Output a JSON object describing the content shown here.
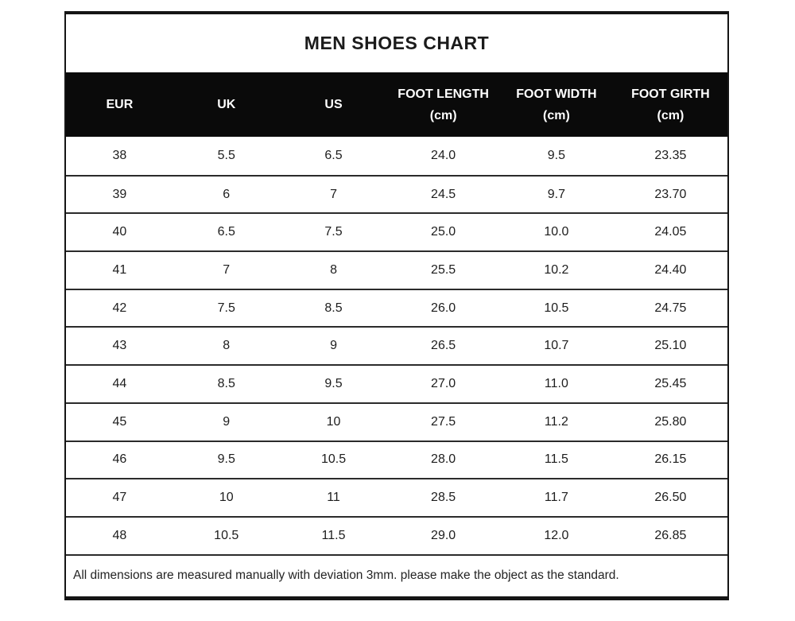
{
  "table": {
    "title": "MEN SHOES CHART",
    "columns": [
      {
        "key": "eur",
        "label": "EUR",
        "sub": ""
      },
      {
        "key": "uk",
        "label": "UK",
        "sub": ""
      },
      {
        "key": "us",
        "label": "US",
        "sub": ""
      },
      {
        "key": "foot-length",
        "label": "FOOT LENGTH",
        "sub": "(cm)"
      },
      {
        "key": "foot-width",
        "label": "FOOT WIDTH",
        "sub": "(cm)"
      },
      {
        "key": "foot-girth",
        "label": "FOOT GIRTH",
        "sub": "(cm)"
      }
    ],
    "rows": [
      [
        "38",
        "5.5",
        "6.5",
        "24.0",
        "9.5",
        "23.35"
      ],
      [
        "39",
        "6",
        "7",
        "24.5",
        "9.7",
        "23.70"
      ],
      [
        "40",
        "6.5",
        "7.5",
        "25.0",
        "10.0",
        "24.05"
      ],
      [
        "41",
        "7",
        "8",
        "25.5",
        "10.2",
        "24.40"
      ],
      [
        "42",
        "7.5",
        "8.5",
        "26.0",
        "10.5",
        "24.75"
      ],
      [
        "43",
        "8",
        "9",
        "26.5",
        "10.7",
        "25.10"
      ],
      [
        "44",
        "8.5",
        "9.5",
        "27.0",
        "11.0",
        "25.45"
      ],
      [
        "45",
        "9",
        "10",
        "27.5",
        "11.2",
        "25.80"
      ],
      [
        "46",
        "9.5",
        "10.5",
        "28.0",
        "11.5",
        "26.15"
      ],
      [
        "47",
        "10",
        "11",
        "28.5",
        "11.7",
        "26.50"
      ],
      [
        "48",
        "10.5",
        "11.5",
        "29.0",
        "12.0",
        "26.85"
      ]
    ],
    "footnote": "All dimensions are measured manually with deviation 3mm. please make the object as the standard.",
    "colors": {
      "header_bg": "#0a0a0a",
      "header_text": "#ffffff",
      "body_text": "#1d1d1d",
      "border": "#2b2b2b"
    }
  },
  "chart_data": {
    "type": "table",
    "title": "MEN SHOES CHART",
    "columns": [
      "EUR",
      "UK",
      "US",
      "FOOT LENGTH (cm)",
      "FOOT WIDTH (cm)",
      "FOOT GIRTH (cm)"
    ],
    "rows": [
      [
        38,
        5.5,
        6.5,
        24.0,
        9.5,
        23.35
      ],
      [
        39,
        6,
        7,
        24.5,
        9.7,
        23.7
      ],
      [
        40,
        6.5,
        7.5,
        25.0,
        10.0,
        24.05
      ],
      [
        41,
        7,
        8,
        25.5,
        10.2,
        24.4
      ],
      [
        42,
        7.5,
        8.5,
        26.0,
        10.5,
        24.75
      ],
      [
        43,
        8,
        9,
        26.5,
        10.7,
        25.1
      ],
      [
        44,
        8.5,
        9.5,
        27.0,
        11.0,
        25.45
      ],
      [
        45,
        9,
        10,
        27.5,
        11.2,
        25.8
      ],
      [
        46,
        9.5,
        10.5,
        28.0,
        11.5,
        26.15
      ],
      [
        47,
        10,
        11,
        28.5,
        11.7,
        26.5
      ],
      [
        48,
        10.5,
        11.5,
        29.0,
        12.0,
        26.85
      ]
    ],
    "footnote": "All dimensions are measured manually with deviation 3mm. please make the object as the standard."
  }
}
